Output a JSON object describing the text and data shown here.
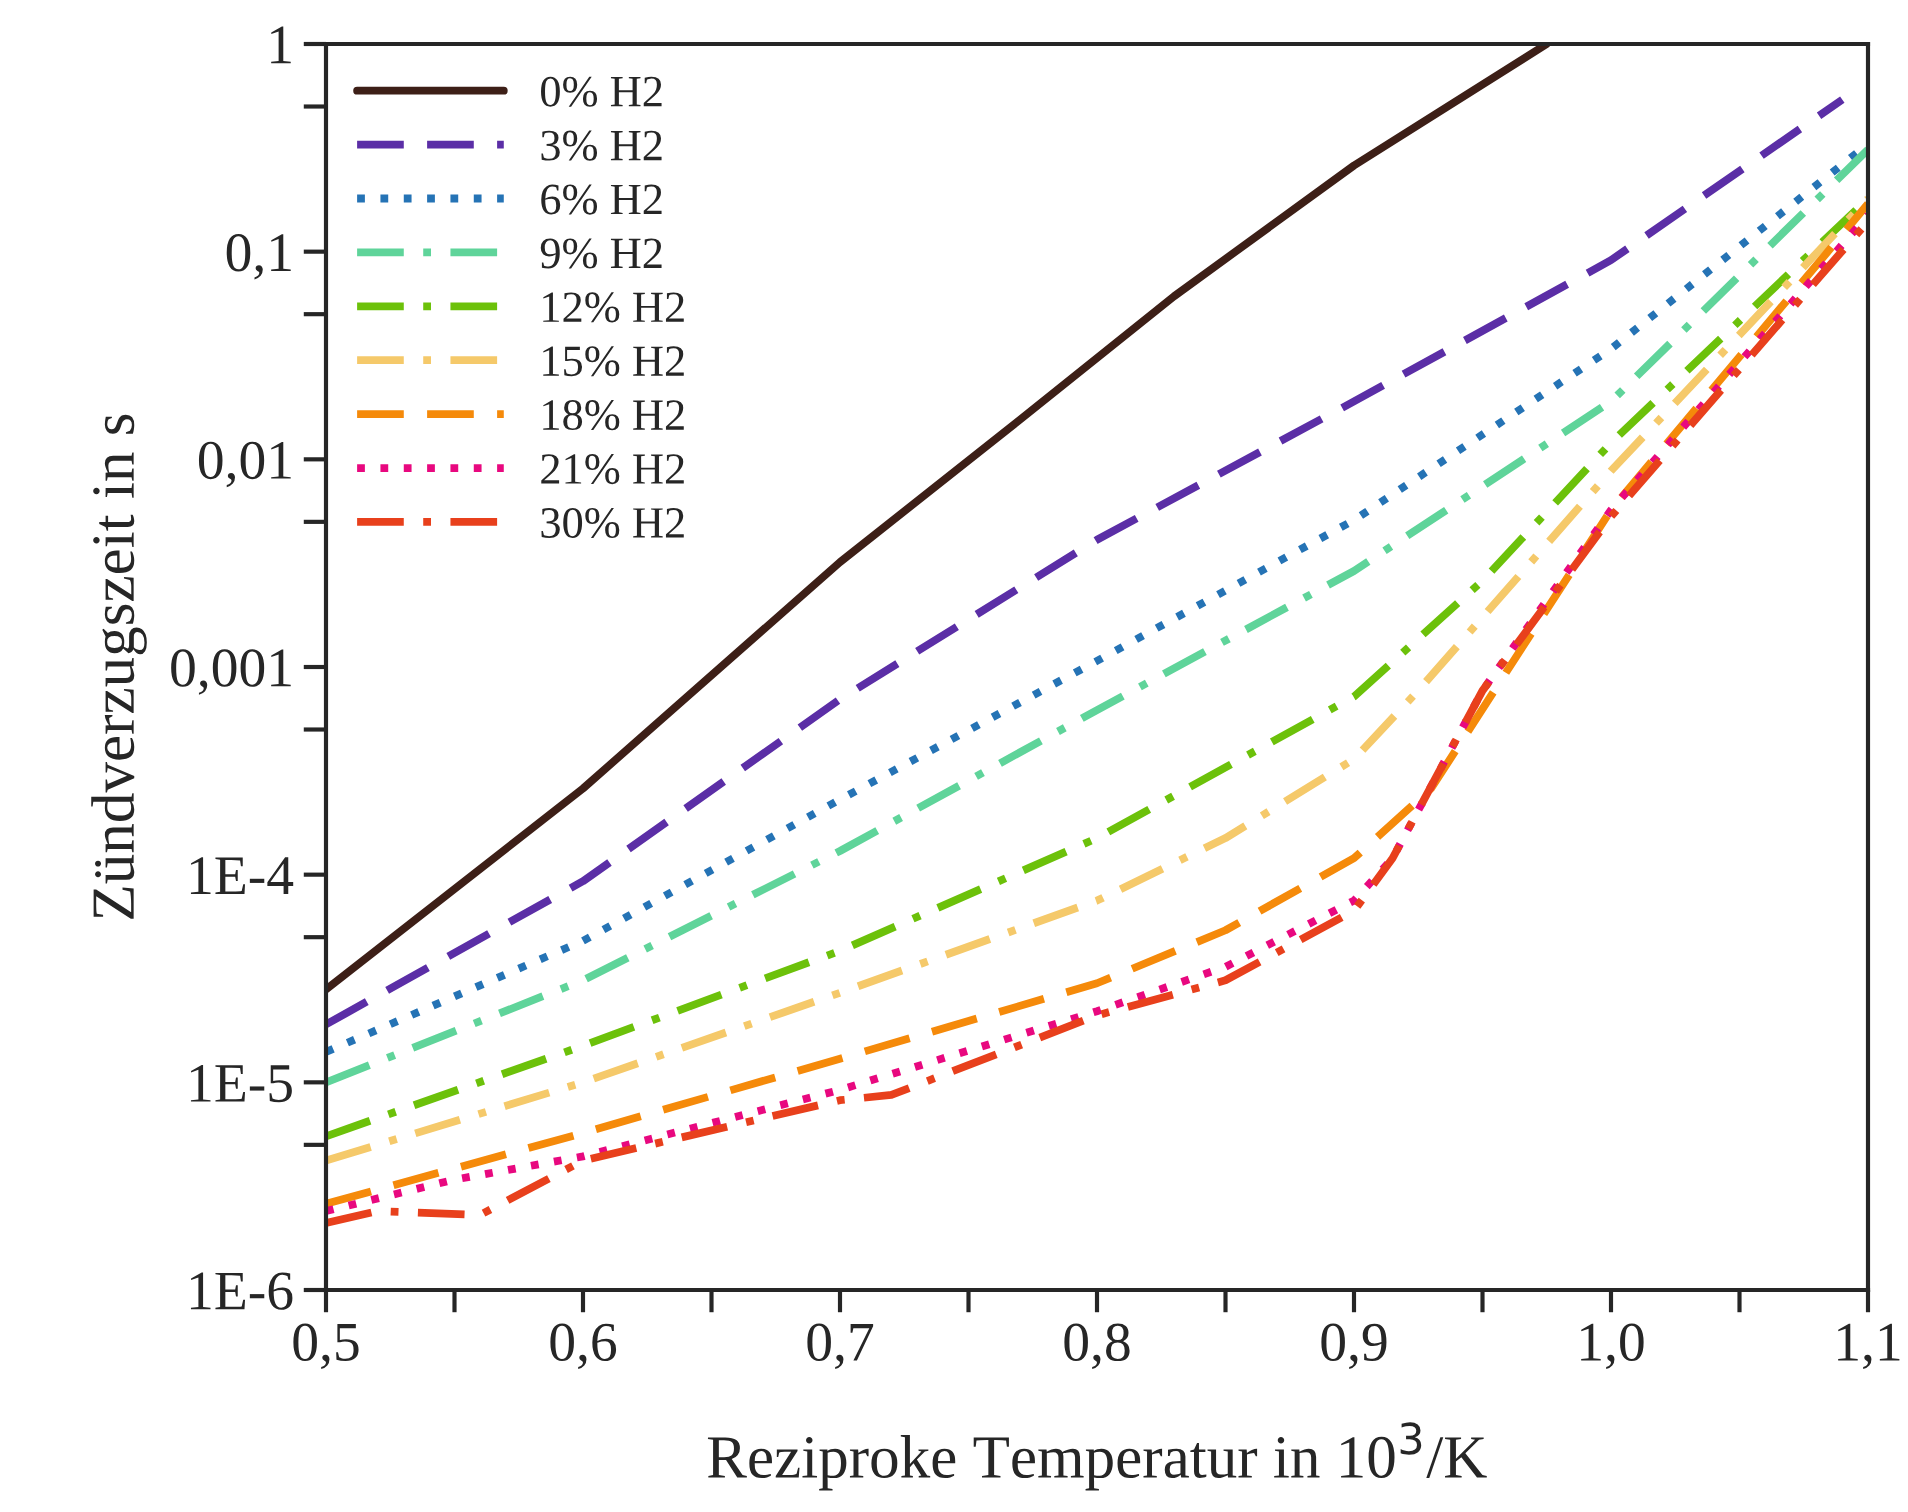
{
  "chart_data": {
    "type": "line",
    "xlabel": "Reziproke Temperatur in 10$^{3}$/K",
    "ylabel": "Zündverzugszeit in s",
    "log": "y",
    "xlim": [
      0.5,
      1.1
    ],
    "ylim": [
      1e-06,
      1
    ],
    "xticks": [
      {
        "value": 0.5,
        "label": "0,5"
      },
      {
        "value": 0.55,
        "label": null
      },
      {
        "value": 0.6,
        "label": "0,6"
      },
      {
        "value": 0.65,
        "label": null
      },
      {
        "value": 0.7,
        "label": "0,7"
      },
      {
        "value": 0.75,
        "label": null
      },
      {
        "value": 0.8,
        "label": "0,8"
      },
      {
        "value": 0.85,
        "label": null
      },
      {
        "value": 0.9,
        "label": "0,9"
      },
      {
        "value": 0.95,
        "label": null
      },
      {
        "value": 1.0,
        "label": "1,0"
      },
      {
        "value": 1.05,
        "label": null
      },
      {
        "value": 1.1,
        "label": "1,1"
      }
    ],
    "yticks": [
      {
        "value": 1e-06,
        "label": "1E-6"
      },
      {
        "value": 5e-06,
        "label": null
      },
      {
        "value": 1e-05,
        "label": "1E-5"
      },
      {
        "value": 5e-05,
        "label": null
      },
      {
        "value": 0.0001,
        "label": "1E-4"
      },
      {
        "value": 0.0005,
        "label": null
      },
      {
        "value": 0.001,
        "label": "0,001"
      },
      {
        "value": 0.005,
        "label": null
      },
      {
        "value": 0.01,
        "label": "0,01"
      },
      {
        "value": 0.05,
        "label": null
      },
      {
        "value": 0.1,
        "label": "0,1"
      },
      {
        "value": 0.5,
        "label": null
      },
      {
        "value": 1,
        "label": "1"
      }
    ],
    "grid": false,
    "legend": "top left",
    "series": [
      {
        "name": "0% H2",
        "color": "#3d1f17",
        "line_style": "solid",
        "x": [
          0.5,
          0.6,
          0.7,
          0.77,
          0.83,
          0.9,
          0.975
        ],
        "values": [
          2.8e-05,
          0.00026,
          0.0032,
          0.0155,
          0.061,
          0.26,
          1.0
        ]
      },
      {
        "name": "3% H2",
        "color": "#5b2ea6",
        "line_style": "dashed",
        "x": [
          0.5,
          0.6,
          0.7,
          0.8,
          0.9,
          1.0,
          1.09
        ],
        "values": [
          1.9e-05,
          9.3e-05,
          0.0007,
          0.0041,
          0.019,
          0.091,
          0.54
        ]
      },
      {
        "name": "6% H2",
        "color": "#2573b5",
        "line_style": "dotted",
        "x": [
          0.5,
          0.6,
          0.7,
          0.8,
          0.9,
          1.0,
          1.1
        ],
        "values": [
          1.4e-05,
          4.8e-05,
          0.00023,
          0.00107,
          0.0051,
          0.034,
          0.33
        ]
      },
      {
        "name": "9% H2",
        "color": "#5fd49a",
        "line_style": "dashdot",
        "x": [
          0.5,
          0.6,
          0.7,
          0.8,
          0.9,
          1.0,
          1.1
        ],
        "values": [
          1e-05,
          3.1e-05,
          0.00013,
          0.00062,
          0.0029,
          0.019,
          0.31
        ]
      },
      {
        "name": "12% H2",
        "color": "#6cc10a",
        "line_style": "dashdot",
        "x": [
          0.5,
          0.6,
          0.7,
          0.8,
          0.9,
          0.95,
          1.0,
          1.1
        ],
        "values": [
          5.5e-06,
          1.5e-05,
          4.3e-05,
          0.00015,
          0.00072,
          0.0026,
          0.012,
          0.18
        ]
      },
      {
        "name": "15% H2",
        "color": "#f5c96a",
        "line_style": "dashdot",
        "x": [
          0.5,
          0.6,
          0.7,
          0.8,
          0.85,
          0.9,
          0.925,
          1.0,
          1.1
        ],
        "values": [
          4.2e-06,
          1e-05,
          2.7e-05,
          7.5e-05,
          0.00015,
          0.00036,
          0.00077,
          0.0088,
          0.18
        ]
      },
      {
        "name": "18% H2",
        "color": "#f58a0a",
        "line_style": "dashed",
        "x": [
          0.5,
          0.6,
          0.7,
          0.8,
          0.85,
          0.9,
          0.93,
          1.0,
          1.1
        ],
        "values": [
          2.6e-06,
          5.7e-06,
          1.3e-05,
          3e-05,
          5.4e-05,
          0.00012,
          0.00026,
          0.0057,
          0.17
        ]
      },
      {
        "name": "21% H2",
        "color": "#e8087f",
        "line_style": "dotted",
        "x": [
          0.5,
          0.55,
          0.6,
          0.7,
          0.8,
          0.85,
          0.9,
          0.915,
          0.95,
          1.0,
          1.1
        ],
        "values": [
          2.4e-06,
          3.4e-06,
          4.4e-06,
          9.2e-06,
          2.2e-05,
          3.6e-05,
          7.5e-05,
          0.00012,
          0.00077,
          0.0057,
          0.15
        ]
      },
      {
        "name": "30% H2",
        "color": "#e8401c",
        "line_style": "dashdot",
        "x": [
          0.5,
          0.52,
          0.56,
          0.6,
          0.7,
          0.72,
          0.8,
          0.85,
          0.9,
          0.915,
          0.95,
          1.0,
          1.1
        ],
        "values": [
          2.1e-06,
          2.4e-06,
          2.3e-06,
          4.2e-06,
          8.2e-06,
          8.7e-06,
          2.1e-05,
          3.1e-05,
          6.7e-05,
          0.00012,
          0.00077,
          0.0053,
          0.14
        ]
      }
    ]
  }
}
